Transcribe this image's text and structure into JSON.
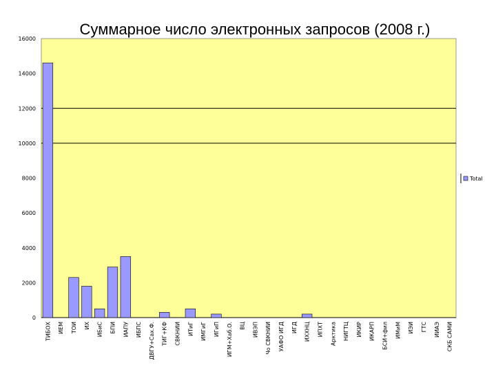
{
  "chart_data": {
    "type": "bar",
    "title": "Суммарное число электронных запросов (2008 г.)",
    "xlabel": "",
    "ylabel": "",
    "ylim": [
      0,
      16000
    ],
    "yticks": [
      0,
      2000,
      4000,
      6000,
      8000,
      10000,
      12000,
      14000,
      16000
    ],
    "grid_y": [
      10000,
      12000
    ],
    "plot_background": "#ffff99",
    "bar_color": "#9999ff",
    "legend_position": "right",
    "categories": [
      "ТИБОХ",
      "ИЕМ",
      "ТОИ",
      "ИХ",
      "ИБиС",
      "БПИ",
      "ИАПУ",
      "ИБПС",
      "ДВГУ+Сах.Ф.",
      "ТИГ+КФ",
      "СВКНИИ",
      "ИТиГ",
      "ИМГиГ",
      "ИГиП",
      "ИГМ+Хаб.О.",
      "ВЦ",
      "ИВЭП",
      "Чо СВКНИИ",
      "УАФО ИГД",
      "ИГД",
      "ИХХНЦ",
      "ИПХТ",
      "Арктика",
      "НИГТЦ",
      "ИКИР",
      "ИКАРП",
      "БСИ+фил",
      "ИМиМ",
      "ИЭИ",
      "ГТС",
      "ИИАЭ",
      "СКБ САМИ"
    ],
    "series": [
      {
        "name": "Total",
        "values": [
          14600,
          0,
          2300,
          1800,
          500,
          2900,
          3500,
          0,
          0,
          300,
          0,
          500,
          0,
          200,
          0,
          0,
          0,
          0,
          0,
          0,
          200,
          0,
          0,
          0,
          0,
          0,
          0,
          0,
          0,
          0,
          0,
          0
        ]
      }
    ]
  }
}
